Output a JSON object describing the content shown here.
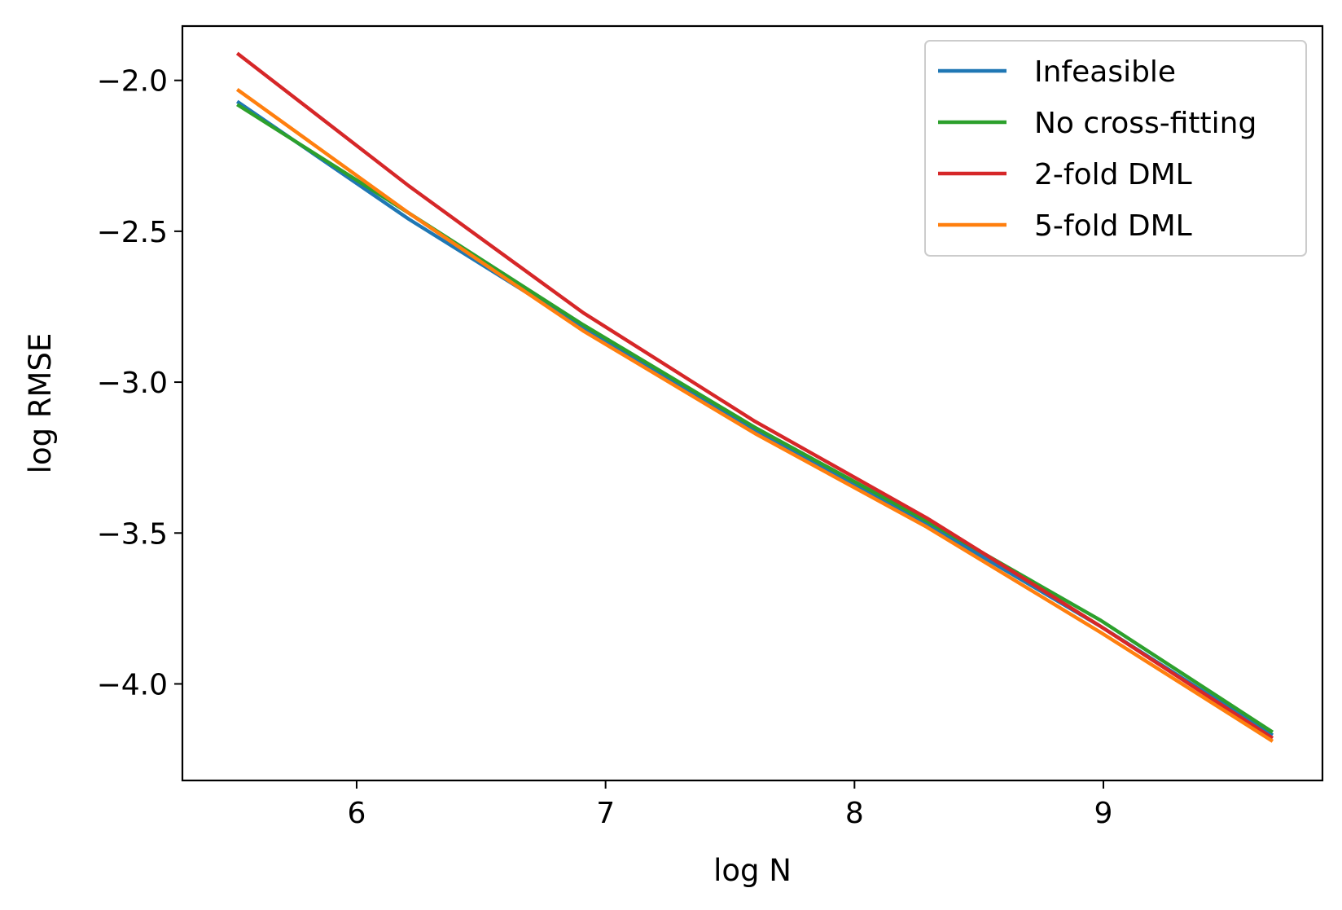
{
  "chart_data": {
    "type": "line",
    "title": "",
    "xlabel": "log N",
    "ylabel": "log RMSE",
    "xlim": [
      5.3,
      9.88
    ],
    "ylim": [
      -4.32,
      -1.82
    ],
    "xticks": [
      6,
      7,
      8,
      9
    ],
    "xtick_labels": [
      "6",
      "7",
      "8",
      "9"
    ],
    "yticks": [
      -2.0,
      -2.5,
      -3.0,
      -3.5,
      -4.0
    ],
    "ytick_labels": [
      "−2.0",
      "−2.5",
      "−3.0",
      "−3.5",
      "−4.0"
    ],
    "grid": false,
    "legend_position": "top-right",
    "x": [
      5.52,
      6.21,
      6.91,
      7.6,
      8.29,
      8.99,
      9.68
    ],
    "series": [
      {
        "name": "Infeasible",
        "color": "#1f77b4",
        "values": [
          -2.07,
          -2.46,
          -2.82,
          -3.16,
          -3.47,
          -3.81,
          -4.17
        ]
      },
      {
        "name": "No cross-fitting",
        "color": "#2ca02c",
        "values": [
          -2.08,
          -2.44,
          -2.81,
          -3.15,
          -3.46,
          -3.79,
          -4.16
        ]
      },
      {
        "name": "2-fold DML",
        "color": "#d62728",
        "values": [
          -1.91,
          -2.35,
          -2.77,
          -3.13,
          -3.45,
          -3.81,
          -4.18
        ]
      },
      {
        "name": "5-fold DML",
        "color": "#ff7f0e",
        "values": [
          -2.03,
          -2.44,
          -2.83,
          -3.17,
          -3.48,
          -3.83,
          -4.19
        ]
      }
    ]
  }
}
